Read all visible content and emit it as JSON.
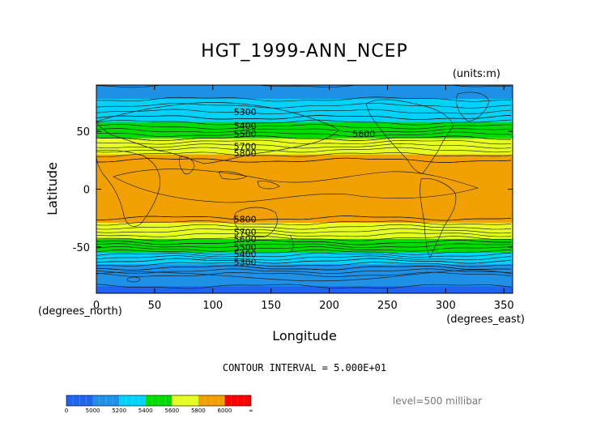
{
  "chart_data": {
    "type": "heatmap",
    "title": "HGT_1999-ANN_NCEP",
    "units_note": "(units:m)",
    "xlabel": "Longitude",
    "ylabel": "Latitude",
    "x_unit_label": "(degrees_east)",
    "y_unit_label": "(degrees_north)",
    "xlim": [
      0,
      357.5
    ],
    "ylim": [
      -90,
      90
    ],
    "x_ticks": [
      0,
      50,
      100,
      150,
      200,
      250,
      300,
      350
    ],
    "y_ticks": [
      -50,
      0,
      50
    ],
    "contour_interval_text": "CONTOUR INTERVAL = 5.000E+01",
    "level_text": "level=500 millibar",
    "colorbar": {
      "bins": [
        {
          "label": "0",
          "color": "#1e64f0"
        },
        {
          "label": "5000",
          "color": "#1e90e6"
        },
        {
          "label": "5200",
          "color": "#00d2fa"
        },
        {
          "label": "5400",
          "color": "#00dc00"
        },
        {
          "label": "5600",
          "color": "#e6ff1e"
        },
        {
          "label": "5800",
          "color": "#f0a000"
        },
        {
          "label": "6000",
          "color": "#fa0000"
        },
        {
          "label": "∞",
          "color": null
        }
      ]
    },
    "zonal_mean_profile": {
      "latitude": [
        90,
        80,
        70,
        62,
        56,
        52,
        48,
        44,
        40,
        36,
        32,
        25,
        10,
        0,
        -10,
        -25,
        -30,
        -34,
        -38,
        -42,
        -46,
        -50,
        -54,
        -58,
        -62,
        -68,
        -75,
        -90
      ],
      "height_m": [
        5150,
        5180,
        5270,
        5350,
        5420,
        5480,
        5540,
        5600,
        5660,
        5720,
        5780,
        5850,
        5870,
        5870,
        5870,
        5850,
        5790,
        5730,
        5670,
        5610,
        5550,
        5480,
        5410,
        5330,
        5250,
        5150,
        5030,
        4980
      ]
    },
    "contour_labels": [
      {
        "text": "5300",
        "lon": 118,
        "lat": 67
      },
      {
        "text": "5400",
        "lon": 118,
        "lat": 55
      },
      {
        "text": "5500",
        "lon": 118,
        "lat": 48
      },
      {
        "text": "5600",
        "lon": 220,
        "lat": 48
      },
      {
        "text": "5700",
        "lon": 118,
        "lat": 37
      },
      {
        "text": "5800",
        "lon": 118,
        "lat": 31
      },
      {
        "text": "5800",
        "lon": 118,
        "lat": -26
      },
      {
        "text": "5700",
        "lon": 118,
        "lat": -37
      },
      {
        "text": "5600",
        "lon": 118,
        "lat": -43
      },
      {
        "text": "5500",
        "lon": 118,
        "lat": -50
      },
      {
        "text": "5400",
        "lon": 118,
        "lat": -56
      },
      {
        "text": "5300",
        "lon": 118,
        "lat": -63
      }
    ]
  }
}
